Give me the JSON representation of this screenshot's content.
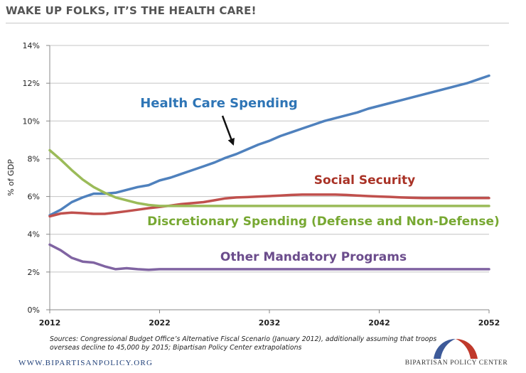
{
  "header": {
    "title": "WAKE UP FOLKS, IT’S THE HEALTH CARE!"
  },
  "chart_data": {
    "type": "line",
    "title": "",
    "xlabel": "",
    "ylabel": "% of GDP",
    "xlim": [
      2012,
      2052
    ],
    "ylim": [
      0,
      14
    ],
    "x_ticks": [
      2012,
      2022,
      2032,
      2042,
      2052
    ],
    "y_ticks": [
      "0%",
      "2%",
      "4%",
      "6%",
      "8%",
      "10%",
      "12%",
      "14%"
    ],
    "y_tick_values": [
      0,
      2,
      4,
      6,
      8,
      10,
      12,
      14
    ],
    "grid": "horizontal",
    "annotation_arrow": {
      "from_series": "Health Care Spending",
      "points_to_year": 2030
    },
    "series": [
      {
        "name": "Health Care Spending",
        "color": "#4f81bd",
        "label_color": "#2e75b6",
        "x": [
          2012,
          2013,
          2014,
          2015,
          2016,
          2017,
          2018,
          2019,
          2020,
          2021,
          2022,
          2023,
          2024,
          2025,
          2026,
          2027,
          2028,
          2029,
          2030,
          2031,
          2032,
          2033,
          2034,
          2035,
          2036,
          2037,
          2038,
          2039,
          2040,
          2041,
          2042,
          2043,
          2044,
          2045,
          2046,
          2047,
          2048,
          2049,
          2050,
          2051,
          2052
        ],
        "values": [
          5.0,
          5.3,
          5.7,
          5.95,
          6.15,
          6.15,
          6.2,
          6.35,
          6.5,
          6.6,
          6.85,
          7.0,
          7.2,
          7.4,
          7.6,
          7.8,
          8.05,
          8.25,
          8.5,
          8.75,
          8.95,
          9.2,
          9.4,
          9.6,
          9.8,
          10.0,
          10.15,
          10.3,
          10.45,
          10.65,
          10.8,
          10.95,
          11.1,
          11.25,
          11.4,
          11.55,
          11.7,
          11.85,
          12.0,
          12.2,
          12.4
        ]
      },
      {
        "name": "Social Security",
        "color": "#c0504d",
        "label_color": "#a93226",
        "x": [
          2012,
          2013,
          2014,
          2015,
          2016,
          2017,
          2018,
          2019,
          2020,
          2021,
          2022,
          2023,
          2024,
          2025,
          2026,
          2027,
          2028,
          2029,
          2030,
          2031,
          2032,
          2033,
          2034,
          2035,
          2036,
          2037,
          2038,
          2039,
          2040,
          2041,
          2042,
          2043,
          2044,
          2045,
          2046,
          2047,
          2048,
          2049,
          2050,
          2051,
          2052
        ],
        "values": [
          4.95,
          5.1,
          5.15,
          5.12,
          5.08,
          5.08,
          5.15,
          5.22,
          5.3,
          5.38,
          5.45,
          5.52,
          5.6,
          5.65,
          5.7,
          5.8,
          5.9,
          5.95,
          5.97,
          6.0,
          6.02,
          6.05,
          6.08,
          6.1,
          6.1,
          6.1,
          6.1,
          6.08,
          6.05,
          6.02,
          6.0,
          5.98,
          5.95,
          5.93,
          5.92,
          5.92,
          5.92,
          5.92,
          5.92,
          5.92,
          5.92
        ]
      },
      {
        "name": "Discretionary Spending (Defense and Non-Defense)",
        "color": "#9bbb59",
        "label_color": "#77a832",
        "x": [
          2012,
          2013,
          2014,
          2015,
          2016,
          2017,
          2018,
          2019,
          2020,
          2021,
          2022,
          2023,
          2024,
          2025,
          2026,
          2027,
          2028,
          2029,
          2030,
          2031,
          2032,
          2033,
          2034,
          2035,
          2036,
          2037,
          2038,
          2039,
          2040,
          2041,
          2042,
          2043,
          2044,
          2045,
          2046,
          2047,
          2048,
          2049,
          2050,
          2051,
          2052
        ],
        "values": [
          8.45,
          7.95,
          7.4,
          6.9,
          6.5,
          6.2,
          5.95,
          5.8,
          5.65,
          5.55,
          5.5,
          5.5,
          5.5,
          5.5,
          5.5,
          5.5,
          5.5,
          5.5,
          5.5,
          5.5,
          5.5,
          5.5,
          5.5,
          5.5,
          5.5,
          5.5,
          5.5,
          5.5,
          5.5,
          5.5,
          5.5,
          5.5,
          5.5,
          5.5,
          5.5,
          5.5,
          5.5,
          5.5,
          5.5,
          5.5,
          5.5
        ]
      },
      {
        "name": "Other Mandatory Programs",
        "color": "#8064a2",
        "label_color": "#6b4c8c",
        "x": [
          2012,
          2013,
          2014,
          2015,
          2016,
          2017,
          2018,
          2019,
          2020,
          2021,
          2022,
          2023,
          2024,
          2025,
          2026,
          2027,
          2028,
          2029,
          2030,
          2031,
          2032,
          2033,
          2034,
          2035,
          2036,
          2037,
          2038,
          2039,
          2040,
          2041,
          2042,
          2043,
          2044,
          2045,
          2046,
          2047,
          2048,
          2049,
          2050,
          2051,
          2052
        ],
        "values": [
          3.45,
          3.15,
          2.75,
          2.55,
          2.5,
          2.3,
          2.15,
          2.2,
          2.15,
          2.12,
          2.15,
          2.15,
          2.15,
          2.15,
          2.15,
          2.15,
          2.15,
          2.15,
          2.15,
          2.15,
          2.15,
          2.15,
          2.15,
          2.15,
          2.15,
          2.15,
          2.15,
          2.15,
          2.15,
          2.15,
          2.15,
          2.15,
          2.15,
          2.15,
          2.15,
          2.15,
          2.15,
          2.15,
          2.15,
          2.15,
          2.15
        ]
      }
    ]
  },
  "source_note": "Sources: Congressional Budget Office’s Alternative Fiscal Scenario (January 2012), additionally assuming that troops overseas decline to 45,000 by 2015; Bipartisan Policy Center extrapolations",
  "footer": {
    "url": "WWW.BIPARTISANPOLICY.ORG",
    "logo_text": "BIPARTISAN POLICY CENTER",
    "logo_colors": {
      "left": "#3d5a99",
      "right": "#c0392b"
    }
  }
}
